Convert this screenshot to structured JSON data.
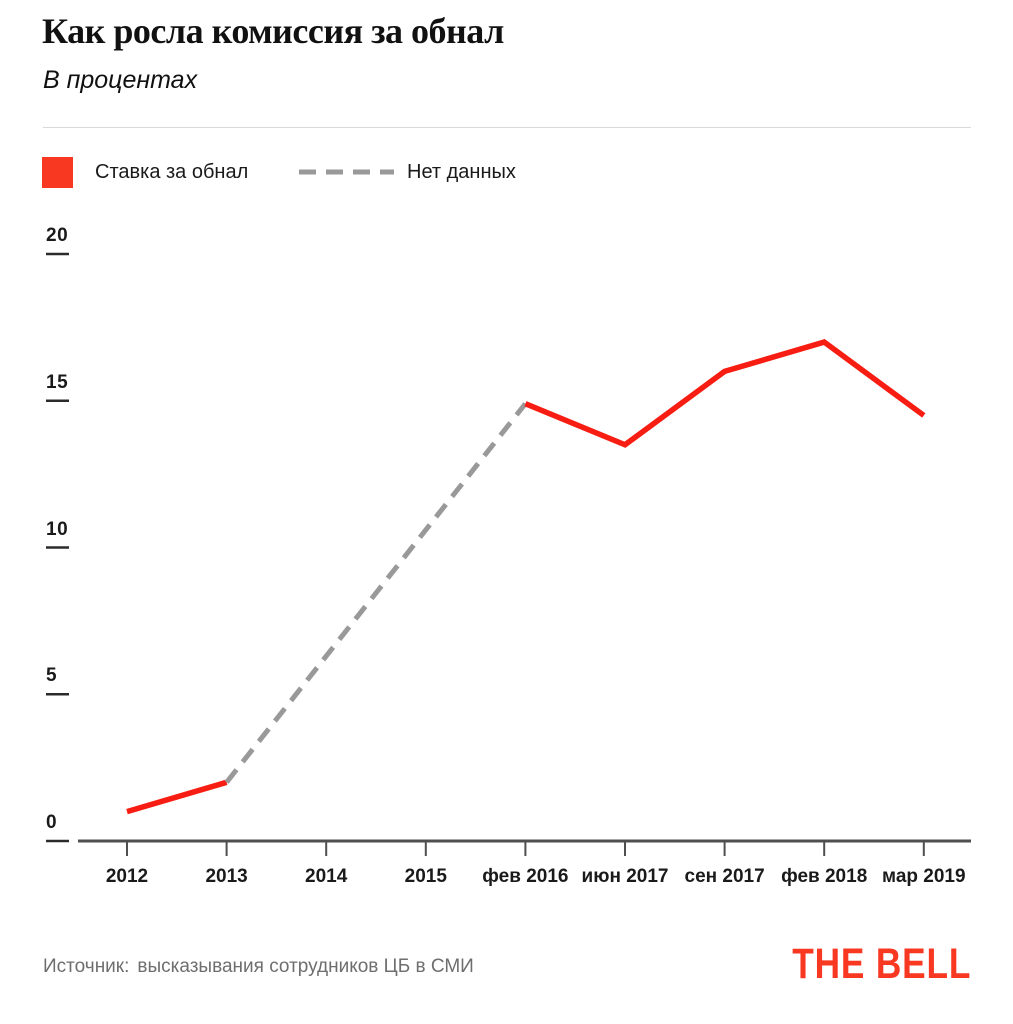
{
  "header": {
    "title": "Как росла комиссия за обнал",
    "subtitle": "В процентах"
  },
  "legend": {
    "items": [
      {
        "label": "Ставка за обнал",
        "marker": "solid-square",
        "color": "#f93822"
      },
      {
        "label": "Нет данных",
        "marker": "dashed-line",
        "color": "#999999"
      }
    ]
  },
  "footer": {
    "source_label": "Источник:",
    "source_text": "высказывания сотрудников ЦБ в СМИ",
    "logo": "THE BELL",
    "logo_color": "#f93822"
  },
  "colors": {
    "line_red": "#f81d12",
    "dashed_gray": "#999999",
    "axis": "#4f4f4f",
    "tick_underline": "#2b2b2b",
    "text_dark": "#1a1a1a",
    "text_gray": "#6e6e6e"
  },
  "chart_data": {
    "type": "line",
    "title": "Как росла комиссия за обнал",
    "unit": "В процентах",
    "categories": [
      "2012",
      "2013",
      "2014",
      "2015",
      "фев 2016",
      "июн 2017",
      "сен 2017",
      "фев 2018",
      "мар 2019"
    ],
    "y_ticks": [
      0,
      5,
      10,
      15,
      20
    ],
    "ylim": [
      0,
      20
    ],
    "grid": false,
    "legend_position": "top-left",
    "series": [
      {
        "name": "Ставка за обнал",
        "style": "solid",
        "color": "#f81d12",
        "points": [
          [
            "2012",
            1
          ],
          [
            "2013",
            2
          ]
        ]
      },
      {
        "name": "Нет данных",
        "style": "dashed",
        "color": "#999999",
        "points": [
          [
            "2013",
            2
          ],
          [
            "фев 2016",
            14.9
          ]
        ]
      },
      {
        "name": "Ставка за обнал",
        "style": "solid",
        "color": "#f81d12",
        "points": [
          [
            "фев 2016",
            14.9
          ],
          [
            "июн 2017",
            13.5
          ],
          [
            "сен 2017",
            16
          ],
          [
            "фев 2018",
            17
          ],
          [
            "мар 2019",
            14.5
          ]
        ]
      }
    ]
  }
}
